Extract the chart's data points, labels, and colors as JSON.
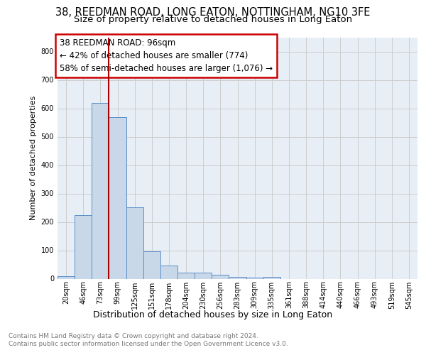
{
  "title": "38, REEDMAN ROAD, LONG EATON, NOTTINGHAM, NG10 3FE",
  "subtitle": "Size of property relative to detached houses in Long Eaton",
  "xlabel": "Distribution of detached houses by size in Long Eaton",
  "ylabel": "Number of detached properties",
  "footnote1": "Contains HM Land Registry data © Crown copyright and database right 2024.",
  "footnote2": "Contains public sector information licensed under the Open Government Licence v3.0.",
  "bin_labels": [
    "20sqm",
    "46sqm",
    "73sqm",
    "99sqm",
    "125sqm",
    "151sqm",
    "178sqm",
    "204sqm",
    "230sqm",
    "256sqm",
    "283sqm",
    "309sqm",
    "335sqm",
    "361sqm",
    "388sqm",
    "414sqm",
    "440sqm",
    "466sqm",
    "493sqm",
    "519sqm",
    "545sqm"
  ],
  "bar_values": [
    10,
    225,
    618,
    568,
    252,
    97,
    46,
    22,
    22,
    14,
    7,
    5,
    7,
    0,
    0,
    0,
    0,
    0,
    0,
    0,
    0
  ],
  "bar_color": "#c8d8e8",
  "bar_edge_color": "#5b8fc9",
  "vline_x": 2.5,
  "vline_color": "#aa0000",
  "annotation_text": "38 REEDMAN ROAD: 96sqm\n← 42% of detached houses are smaller (774)\n58% of semi-detached houses are larger (1,076) →",
  "annotation_box_color": "white",
  "annotation_box_edge": "#cc0000",
  "ylim": [
    0,
    850
  ],
  "yticks": [
    0,
    100,
    200,
    300,
    400,
    500,
    600,
    700,
    800
  ],
  "grid_color": "#cccccc",
  "axis_bg_color": "#e8eef5",
  "title_fontsize": 10.5,
  "subtitle_fontsize": 9.5,
  "ylabel_fontsize": 8,
  "xlabel_fontsize": 9,
  "tick_fontsize": 7,
  "footnote_fontsize": 6.5,
  "annot_fontsize": 8.5
}
